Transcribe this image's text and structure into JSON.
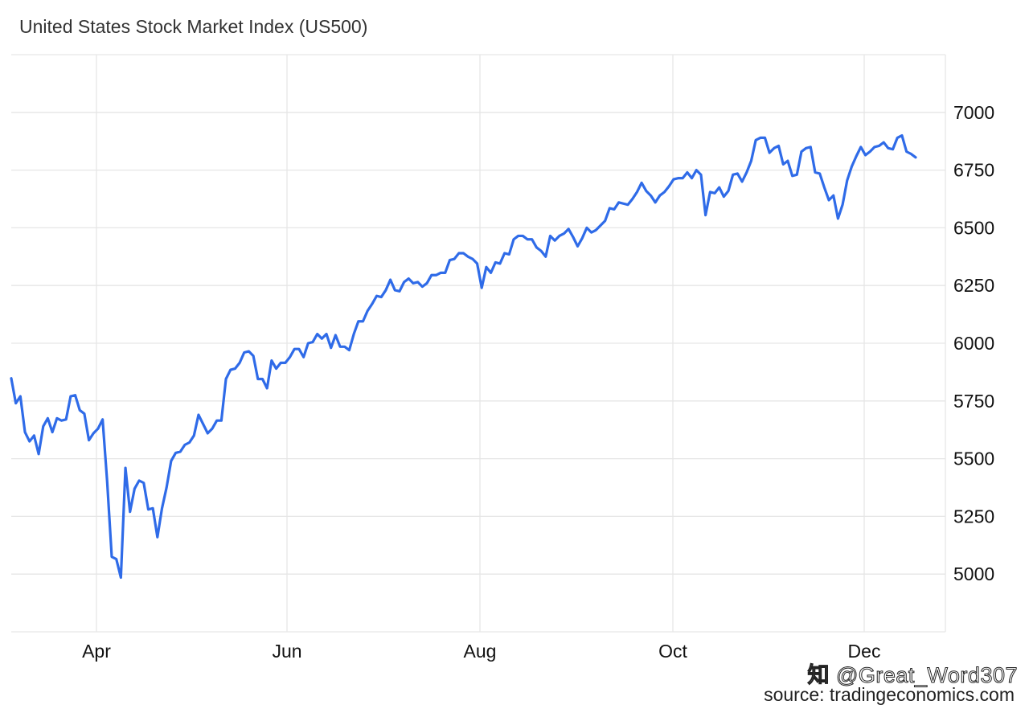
{
  "title": "United States Stock Market Index (US500)",
  "watermark": {
    "logo": "知",
    "text": "@Great_Word307"
  },
  "source": "source: tradingeconomics.com",
  "line_color": "#2f6be8",
  "chart_data": {
    "type": "line",
    "title": "United States Stock Market Index (US500)",
    "xlabel": "",
    "ylabel": "",
    "ylim": [
      4750,
      7250
    ],
    "yticks": [
      5000,
      5250,
      5500,
      5750,
      6000,
      6250,
      6500,
      6750,
      7000
    ],
    "xticks": [
      "Apr",
      "Jun",
      "Aug",
      "Oct",
      "Dec"
    ],
    "grid": true,
    "series": [
      {
        "values": [
          5848,
          5740,
          5770,
          5615,
          5575,
          5600,
          5520,
          5640,
          5675,
          5615,
          5675,
          5665,
          5670,
          5770,
          5775,
          5710,
          5695,
          5580,
          5610,
          5630,
          5670,
          5400,
          5075,
          5065,
          4985,
          5460,
          5270,
          5370,
          5405,
          5395,
          5280,
          5285,
          5160,
          5285,
          5375,
          5490,
          5525,
          5530,
          5560,
          5570,
          5600,
          5690,
          5650,
          5610,
          5630,
          5665,
          5665,
          5845,
          5885,
          5890,
          5915,
          5960,
          5965,
          5945,
          5845,
          5845,
          5805,
          5925,
          5890,
          5915,
          5915,
          5940,
          5975,
          5975,
          5940,
          6000,
          6005,
          6040,
          6020,
          6040,
          5980,
          6035,
          5985,
          5985,
          5970,
          6040,
          6095,
          6095,
          6140,
          6170,
          6205,
          6200,
          6230,
          6275,
          6230,
          6225,
          6265,
          6280,
          6260,
          6265,
          6245,
          6260,
          6295,
          6295,
          6305,
          6305,
          6360,
          6365,
          6390,
          6390,
          6375,
          6365,
          6345,
          6240,
          6330,
          6305,
          6350,
          6345,
          6390,
          6385,
          6450,
          6465,
          6465,
          6450,
          6450,
          6415,
          6400,
          6375,
          6465,
          6445,
          6465,
          6475,
          6495,
          6460,
          6420,
          6455,
          6500,
          6480,
          6490,
          6510,
          6530,
          6585,
          6580,
          6610,
          6605,
          6600,
          6625,
          6655,
          6695,
          6660,
          6640,
          6610,
          6640,
          6655,
          6680,
          6710,
          6715,
          6715,
          6740,
          6715,
          6750,
          6730,
          6555,
          6655,
          6650,
          6675,
          6635,
          6660,
          6730,
          6735,
          6700,
          6740,
          6790,
          6880,
          6890,
          6890,
          6825,
          6845,
          6855,
          6775,
          6790,
          6725,
          6730,
          6830,
          6845,
          6850,
          6740,
          6735,
          6675,
          6620,
          6640,
          6540,
          6600,
          6705,
          6765,
          6810,
          6850,
          6815,
          6830,
          6850,
          6855,
          6870,
          6845,
          6840,
          6890,
          6900,
          6830,
          6820,
          6805
        ]
      }
    ]
  }
}
